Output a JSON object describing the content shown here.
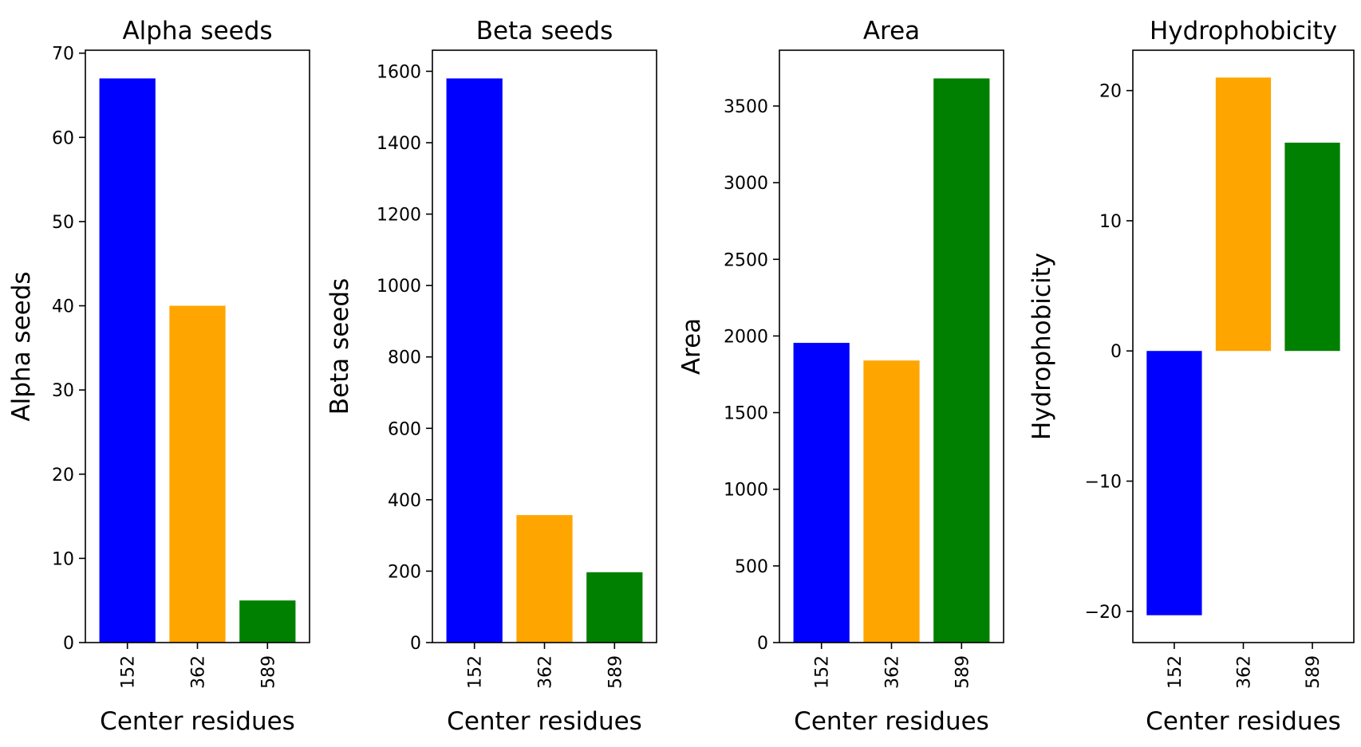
{
  "chart_data": [
    {
      "type": "bar",
      "title": "Alpha seeds",
      "xlabel": "Center residues",
      "ylabel": "Alpha seeds",
      "categories": [
        "152",
        "362",
        "589"
      ],
      "values": [
        67,
        40,
        5
      ],
      "colors": [
        "#0000ff",
        "#ffa500",
        "#008000"
      ],
      "ylim": [
        0,
        70.35
      ],
      "yticks": [
        0,
        10,
        20,
        30,
        40,
        50,
        60,
        70
      ],
      "grid": false
    },
    {
      "type": "bar",
      "title": "Beta seeds",
      "xlabel": "Center residues",
      "ylabel": "Beta seeds",
      "categories": [
        "152",
        "362",
        "589"
      ],
      "values": [
        1580,
        357,
        197
      ],
      "colors": [
        "#0000ff",
        "#ffa500",
        "#008000"
      ],
      "ylim": [
        0,
        1659
      ],
      "yticks": [
        0,
        200,
        400,
        600,
        800,
        1000,
        1200,
        1400,
        1600
      ],
      "grid": false
    },
    {
      "type": "bar",
      "title": "Area",
      "xlabel": "Center residues",
      "ylabel": "Area",
      "categories": [
        "152",
        "362",
        "589"
      ],
      "values": [
        1955,
        1840,
        3680
      ],
      "colors": [
        "#0000ff",
        "#ffa500",
        "#008000"
      ],
      "ylim": [
        0,
        3864
      ],
      "yticks": [
        0,
        500,
        1000,
        1500,
        2000,
        2500,
        3000,
        3500
      ],
      "grid": false
    },
    {
      "type": "bar",
      "title": "Hydrophobicity",
      "xlabel": "Center residues",
      "ylabel": "Hydrophobicity",
      "categories": [
        "152",
        "362",
        "589"
      ],
      "values": [
        -20.3,
        21.0,
        16.0
      ],
      "colors": [
        "#0000ff",
        "#ffa500",
        "#008000"
      ],
      "ylim": [
        -22.4,
        23.1
      ],
      "yticks": [
        -20,
        -10,
        0,
        10,
        20
      ],
      "ytick_labels": [
        "−20",
        "−10",
        "0",
        "10",
        "20"
      ],
      "grid": false
    }
  ]
}
